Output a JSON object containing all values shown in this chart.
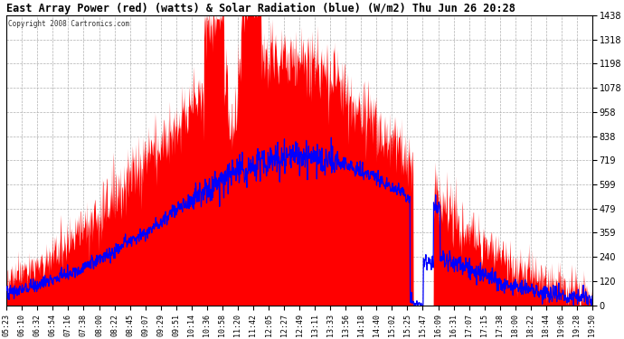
{
  "title": "East Array Power (red) (watts) & Solar Radiation (blue) (W/m2) Thu Jun 26 20:28",
  "copyright": "Copyright 2008 Cartronics.com",
  "bg_color": "#ffffff",
  "plot_bg_color": "#ffffff",
  "grid_color": "#b0b0b0",
  "red_color": "#ff0000",
  "blue_color": "#0000ff",
  "ymin": 0.0,
  "ymax": 1437.5,
  "yticks": [
    0.0,
    119.8,
    239.6,
    359.4,
    479.2,
    599.0,
    718.7,
    838.5,
    958.3,
    1078.1,
    1197.9,
    1317.7,
    1437.5
  ],
  "x_labels": [
    "05:23",
    "06:10",
    "06:32",
    "06:54",
    "07:16",
    "07:38",
    "08:00",
    "08:22",
    "08:45",
    "09:07",
    "09:29",
    "09:51",
    "10:14",
    "10:36",
    "10:58",
    "11:20",
    "11:42",
    "12:05",
    "12:27",
    "12:49",
    "13:11",
    "13:33",
    "13:56",
    "14:18",
    "14:40",
    "15:02",
    "15:25",
    "15:47",
    "16:09",
    "16:31",
    "17:07",
    "17:15",
    "17:38",
    "18:00",
    "18:22",
    "18:44",
    "19:06",
    "19:28",
    "19:50"
  ],
  "figsize": [
    6.9,
    3.75
  ],
  "dpi": 100
}
